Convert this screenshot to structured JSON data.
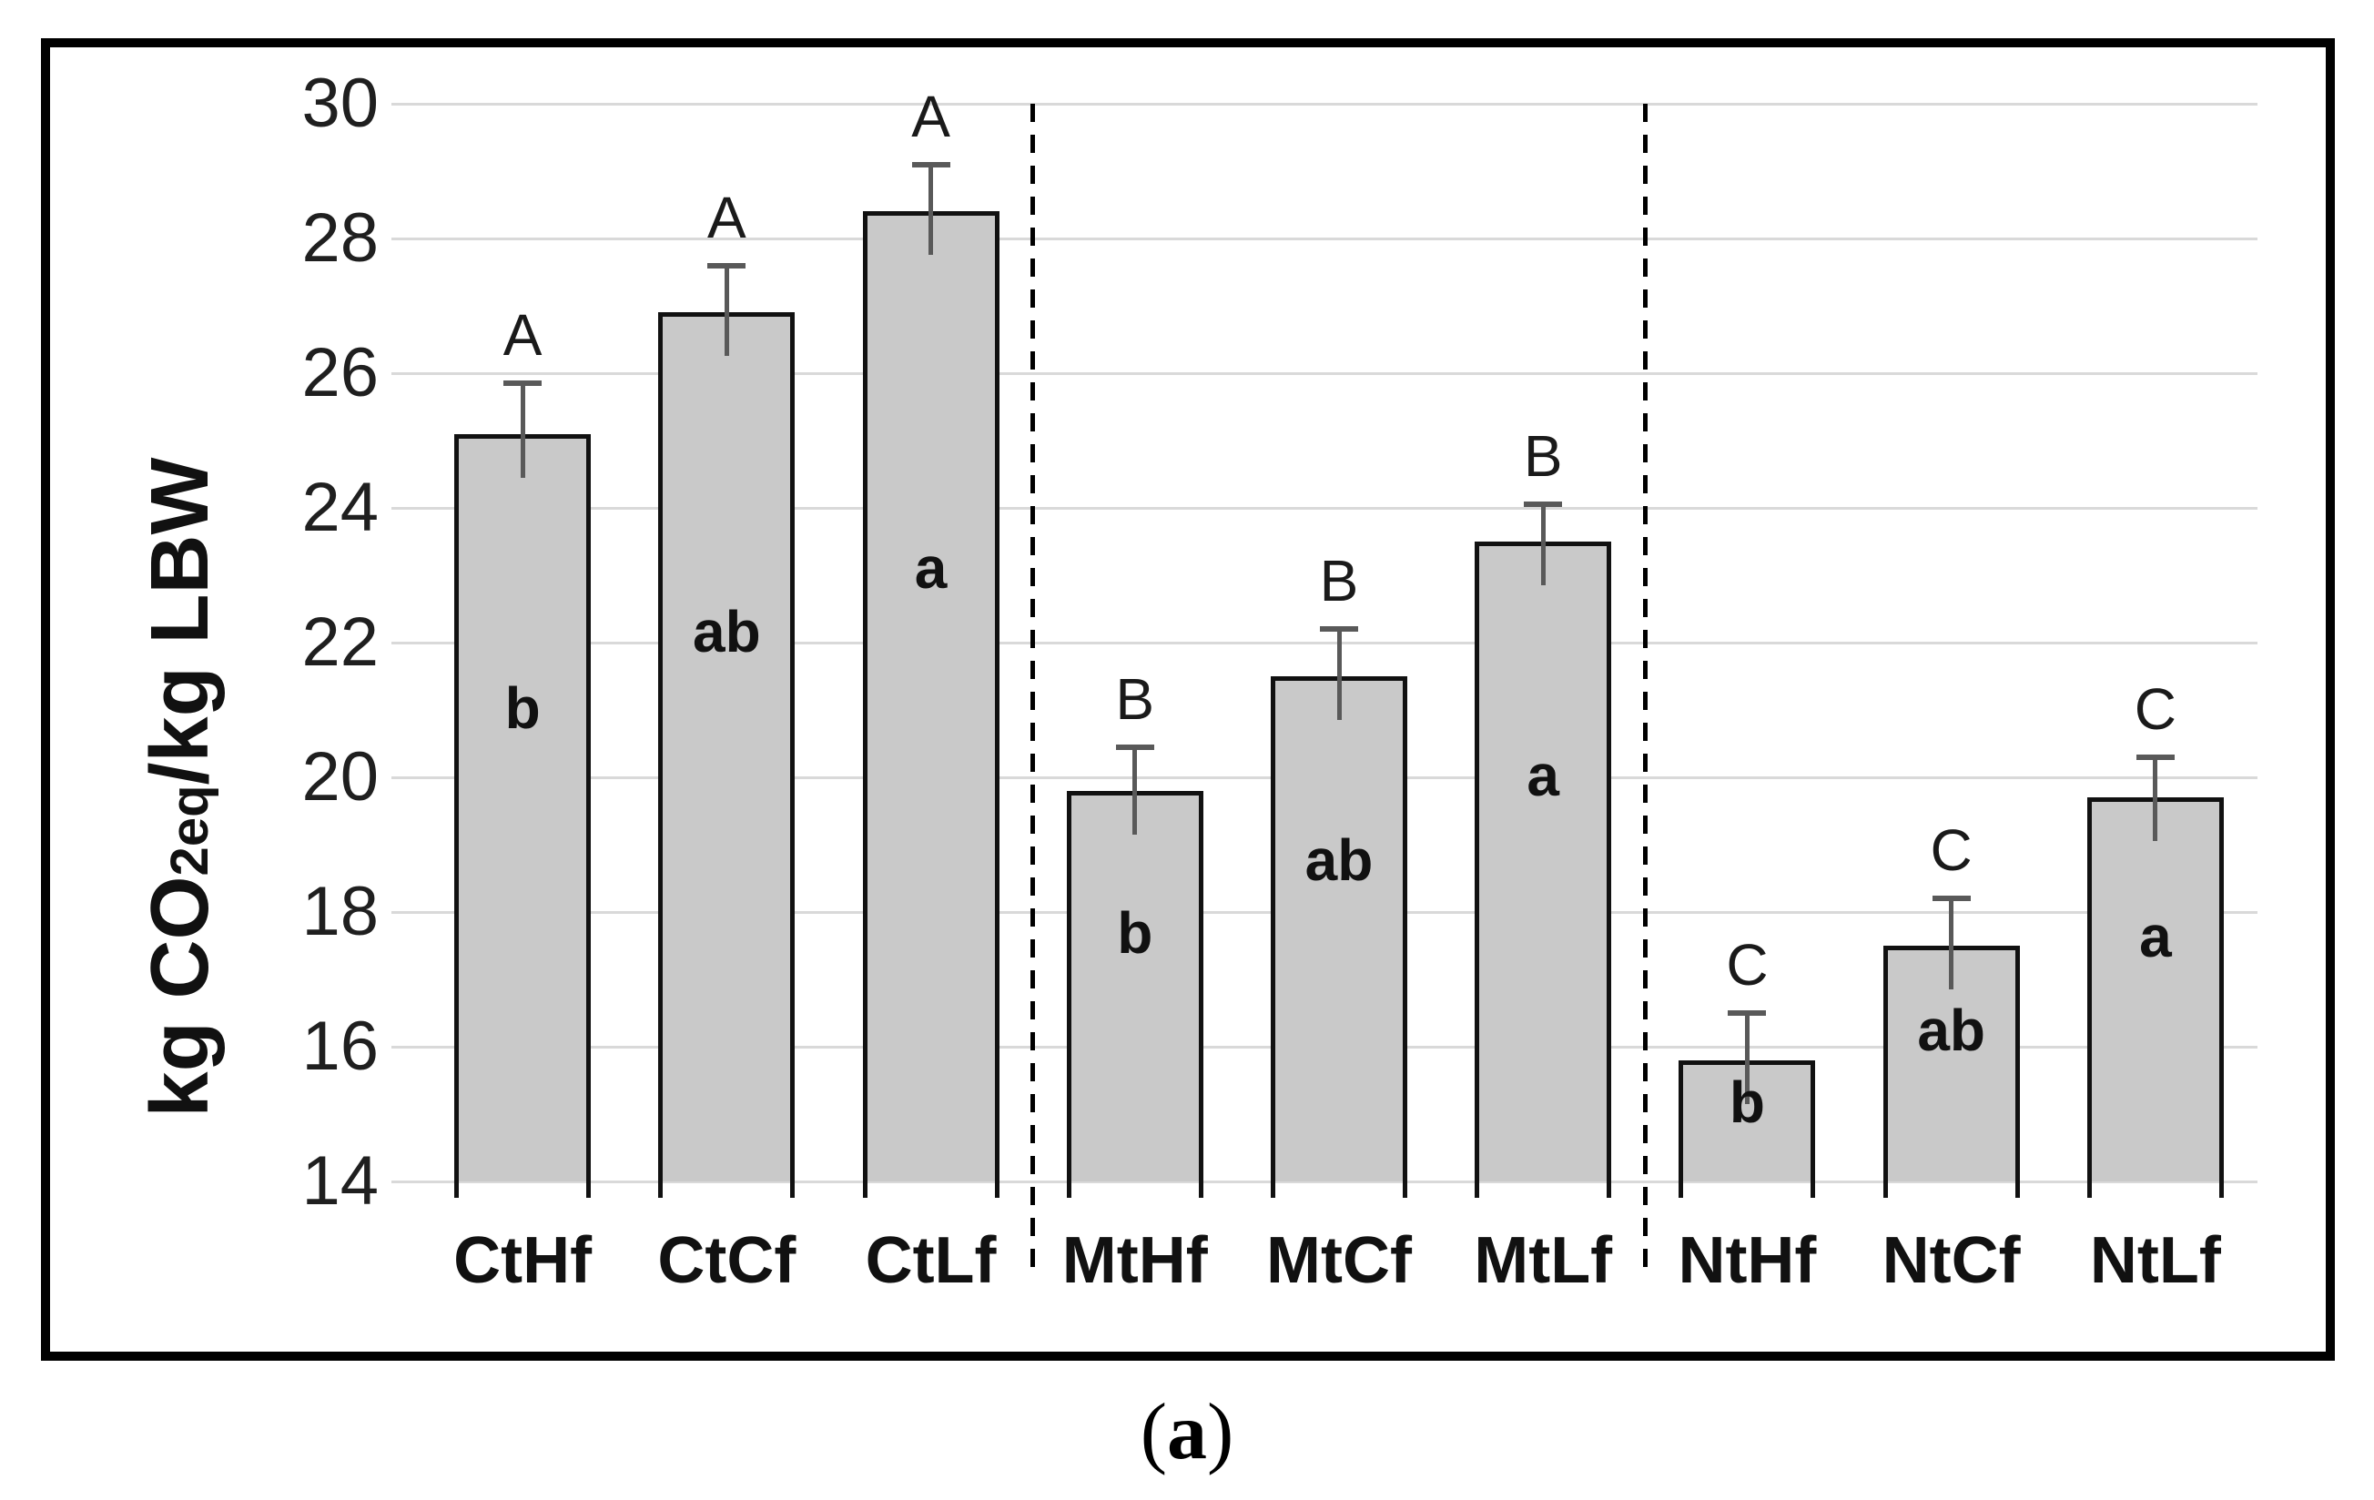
{
  "figure": {
    "caption": "(a)",
    "caption_parts": {
      "open": "(",
      "letter": "a",
      "close": ")"
    }
  },
  "chart_data": {
    "type": "bar",
    "title": "",
    "xlabel": "",
    "ylabel": {
      "prefix": "kg CO",
      "subscript": "2eq",
      "suffix": "/kg LBW",
      "full_text": "kg CO2eq/kg LBW"
    },
    "ylim": [
      14,
      30
    ],
    "ytick_step": 2,
    "yticks": [
      30,
      28,
      26,
      24,
      22,
      20,
      18,
      16,
      14
    ],
    "grid": true,
    "legend": null,
    "categories": [
      "CtHf",
      "CtCf",
      "CtLf",
      "MtHf",
      "MtCf",
      "MtLf",
      "NtHf",
      "NtCf",
      "NtLf"
    ],
    "values": [
      25.1,
      26.9,
      28.4,
      19.8,
      21.5,
      23.5,
      15.8,
      17.5,
      19.7
    ],
    "error_up": [
      0.75,
      0.7,
      0.7,
      0.65,
      0.7,
      0.55,
      0.7,
      0.7,
      0.6
    ],
    "letters_above": [
      "A",
      "A",
      "A",
      "B",
      "B",
      "B",
      "C",
      "C",
      "C"
    ],
    "letters_inside": [
      "b",
      "ab",
      "a",
      "b",
      "ab",
      "a",
      "b",
      "ab",
      "a"
    ],
    "group_separators_after": [
      2,
      5
    ],
    "groups": [
      {
        "name": "Ct",
        "categories": [
          "CtHf",
          "CtCf",
          "CtLf"
        ]
      },
      {
        "name": "Mt",
        "categories": [
          "MtHf",
          "MtCf",
          "MtLf"
        ]
      },
      {
        "name": "Nt",
        "categories": [
          "NtHf",
          "NtCf",
          "NtLf"
        ]
      }
    ],
    "colors": {
      "bar_fill": "#c9c9c9",
      "bar_border": "#111111",
      "error_bar": "#595959",
      "gridline": "#d9d9d9",
      "separator": "#000000",
      "text": "#111111"
    }
  }
}
